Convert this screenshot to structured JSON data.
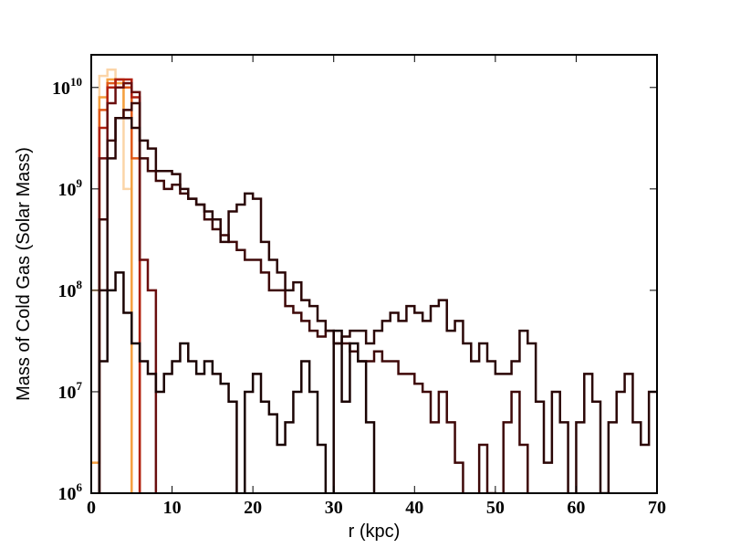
{
  "chart_data": {
    "type": "step",
    "x_label": "r (kpc)",
    "y_label": "Mass of Cold Gas (Solar Mass)",
    "xlim": [
      0,
      70
    ],
    "xticks": [
      0,
      10,
      20,
      30,
      40,
      50,
      60,
      70
    ],
    "ylim": [
      1000000,
      21000000000
    ],
    "log_y": true,
    "yticks": [
      {
        "value": 1000000,
        "label": "10",
        "power": "6"
      },
      {
        "value": 10000000,
        "label": "10",
        "power": "7"
      },
      {
        "value": 100000000,
        "label": "10",
        "power": "8"
      },
      {
        "value": 1000000000,
        "label": "10",
        "power": "9"
      },
      {
        "value": 10000000000,
        "label": "10",
        "power": "10"
      }
    ],
    "series": [
      {
        "color": "#fbd5a8",
        "x": [
          0,
          1,
          2,
          3,
          4,
          5
        ],
        "values": [
          100000000,
          13000000000,
          15000000000,
          10000000000,
          1000000000,
          100000
        ]
      },
      {
        "color": "#f5a040",
        "x": [
          0,
          1,
          2,
          3,
          4,
          5
        ],
        "values": [
          2000000,
          8000000000,
          12000000000,
          11000000000,
          5000000000,
          100000
        ]
      },
      {
        "color": "#e05a1a",
        "x": [
          0,
          1,
          2,
          3,
          4,
          5,
          6
        ],
        "values": [
          100000,
          6000000000,
          11000000000,
          12000000000,
          10000000000,
          2000000000,
          100000
        ]
      },
      {
        "color": "#b02010",
        "x": [
          0,
          1,
          2,
          3,
          4,
          5,
          6
        ],
        "values": [
          100000,
          4000000000,
          10000000000,
          12000000000,
          12000000000,
          8000000000,
          100000
        ]
      },
      {
        "color": "#6a0e0e",
        "x": [
          0,
          1,
          2,
          3,
          4,
          5,
          6,
          7,
          8
        ],
        "values": [
          100000,
          2000000000,
          7000000000,
          10000000000,
          11000000000,
          9000000000,
          200000000,
          100000000,
          100000
        ]
      },
      {
        "color": "#3e0808",
        "x": [
          0,
          1,
          2,
          3,
          4,
          5,
          6,
          7,
          8,
          9,
          10,
          11,
          12,
          13,
          14,
          15,
          16,
          17,
          18,
          19,
          20,
          21,
          22,
          23,
          24,
          25,
          26,
          27,
          28,
          29,
          30,
          31,
          32,
          33,
          34,
          35,
          36,
          37,
          38,
          39,
          40,
          41,
          42,
          43,
          44,
          45,
          46,
          47,
          48,
          49,
          50,
          51,
          52,
          53,
          54
        ],
        "values": [
          100000,
          500000000,
          3000000000,
          5000000000,
          6000000000,
          7000000000,
          2000000000,
          1500000000,
          1200000000,
          1000000000,
          1100000000,
          900000000,
          800000000,
          700000000,
          500000000,
          400000000,
          350000000,
          300000000,
          250000000,
          200000000,
          200000000,
          150000000,
          100000000,
          100000000,
          70000000,
          60000000,
          50000000,
          40000000,
          35000000,
          40000000,
          30000000,
          30000000,
          25000000,
          20000000,
          20000000,
          25000000,
          20000000,
          20000000,
          15000000,
          15000000,
          12000000,
          10000000,
          5000000,
          10000000,
          5000000,
          2000000,
          100000,
          100000,
          3000000,
          1000000,
          100000,
          5000000,
          10000000,
          3000000,
          100000
        ]
      },
      {
        "color": "#2a0606",
        "x": [
          0,
          1,
          2,
          3,
          4,
          5,
          6,
          7,
          8,
          9,
          10,
          11,
          12,
          13,
          14,
          15,
          16,
          17,
          18,
          19,
          20,
          21,
          22,
          23,
          24,
          25,
          26,
          27,
          28,
          29,
          30,
          31,
          32,
          33,
          34,
          35,
          36,
          37,
          38,
          39,
          40,
          41,
          42,
          43,
          44,
          45,
          46,
          47,
          48,
          49,
          50,
          51,
          52,
          53,
          54,
          55,
          56,
          57,
          58,
          59,
          60,
          61,
          62,
          63,
          64,
          65,
          66,
          67,
          68,
          69
        ],
        "values": [
          100000,
          100000000,
          2000000000,
          5000000000,
          5000000000,
          4000000000,
          3000000000,
          2500000000,
          1500000000,
          1500000000,
          1400000000,
          1000000000,
          800000000,
          700000000,
          600000000,
          500000000,
          300000000,
          600000000,
          700000000,
          900000000,
          800000000,
          300000000,
          200000000,
          150000000,
          100000000,
          120000000,
          80000000,
          70000000,
          50000000,
          40000000,
          30000000,
          35000000,
          40000000,
          40000000,
          30000000,
          40000000,
          50000000,
          60000000,
          50000000,
          70000000,
          60000000,
          50000000,
          70000000,
          80000000,
          40000000,
          50000000,
          30000000,
          20000000,
          30000000,
          20000000,
          15000000,
          15000000,
          20000000,
          40000000,
          30000000,
          8000000,
          2000000,
          10000000,
          5000000,
          100000,
          5000000,
          15000000,
          8000000,
          1000000,
          5000000,
          10000000,
          15000000,
          5000000,
          3000000,
          10000000
        ]
      },
      {
        "color": "#1a0303",
        "x": [
          0,
          1,
          2,
          3,
          4,
          5,
          6,
          7,
          8,
          9,
          10,
          11,
          12,
          13,
          14,
          15,
          16,
          17,
          18,
          19,
          20,
          21,
          22,
          23,
          24,
          25,
          26,
          27,
          28,
          29,
          30,
          31,
          32,
          33,
          34,
          35
        ],
        "values": [
          100000,
          20000000,
          100000000,
          150000000,
          60000000,
          30000000,
          20000000,
          15000000,
          10000000,
          15000000,
          20000000,
          30000000,
          20000000,
          15000000,
          20000000,
          15000000,
          12000000,
          8000000,
          500000,
          10000000,
          15000000,
          8000000,
          6000000,
          3000000,
          5000000,
          10000000,
          20000000,
          10000000,
          3000000,
          100000,
          40000000,
          8000000,
          30000000,
          20000000,
          5000000,
          100000
        ]
      }
    ]
  }
}
